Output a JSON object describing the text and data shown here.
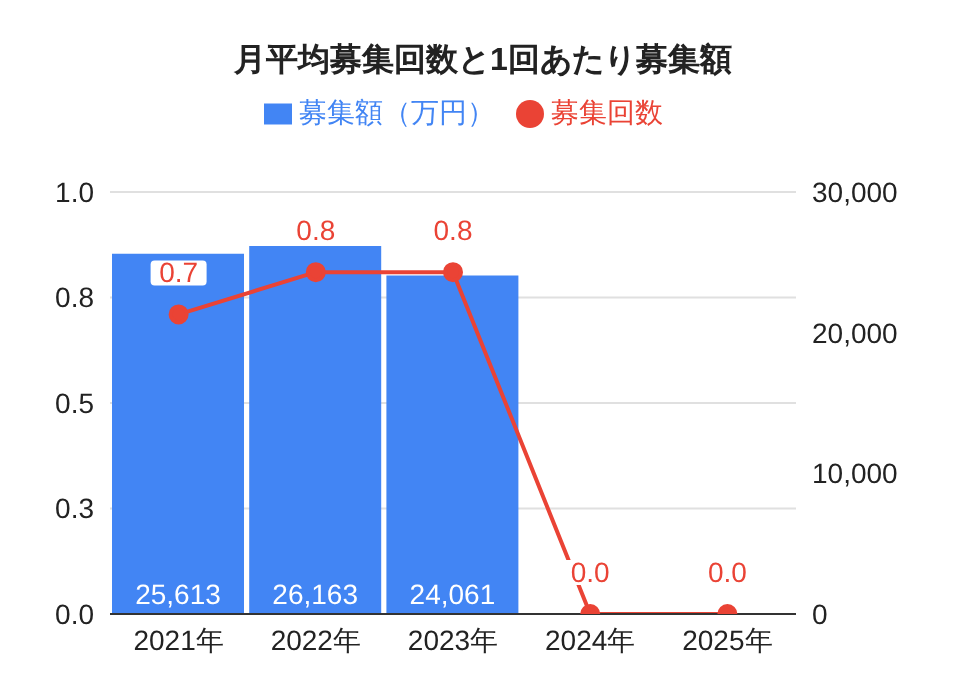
{
  "chart_data": {
    "type": "bar",
    "title": "月平均募集回数と1回あたり募集額",
    "categories": [
      "2021年",
      "2022年",
      "2023年",
      "2024年",
      "2025年"
    ],
    "series": [
      {
        "name": "募集額（万円）",
        "axis": "y2",
        "color": "#4285f4",
        "values": [
          25613,
          26163,
          24061,
          null,
          null
        ],
        "value_labels": [
          "25,613",
          "26,163",
          "24,061",
          null,
          null
        ]
      },
      {
        "name": "募集回数",
        "type": "line",
        "axis": "y",
        "color": "#ea4335",
        "marker": "circle",
        "values": [
          0.71,
          0.81,
          0.81,
          0,
          0
        ],
        "value_labels": [
          "0.7",
          "0.8",
          "0.8",
          "0.0",
          "0.0"
        ]
      }
    ],
    "ylim": [
      0,
      1
    ],
    "yticks": [
      {
        "value": 0,
        "label": "0.0"
      },
      {
        "value": 0.25,
        "label": "0.3"
      },
      {
        "value": 0.5,
        "label": "0.5"
      },
      {
        "value": 0.75,
        "label": "0.8"
      },
      {
        "value": 1,
        "label": "1.0"
      }
    ],
    "y2lim": [
      0,
      30000
    ],
    "y2ticks": [
      {
        "value": 0,
        "label": "0"
      },
      {
        "value": 10000,
        "label": "10,000"
      },
      {
        "value": 20000,
        "label": "20,000"
      },
      {
        "value": 30000,
        "label": "30,000"
      }
    ],
    "grid": "y",
    "legend": "top"
  }
}
